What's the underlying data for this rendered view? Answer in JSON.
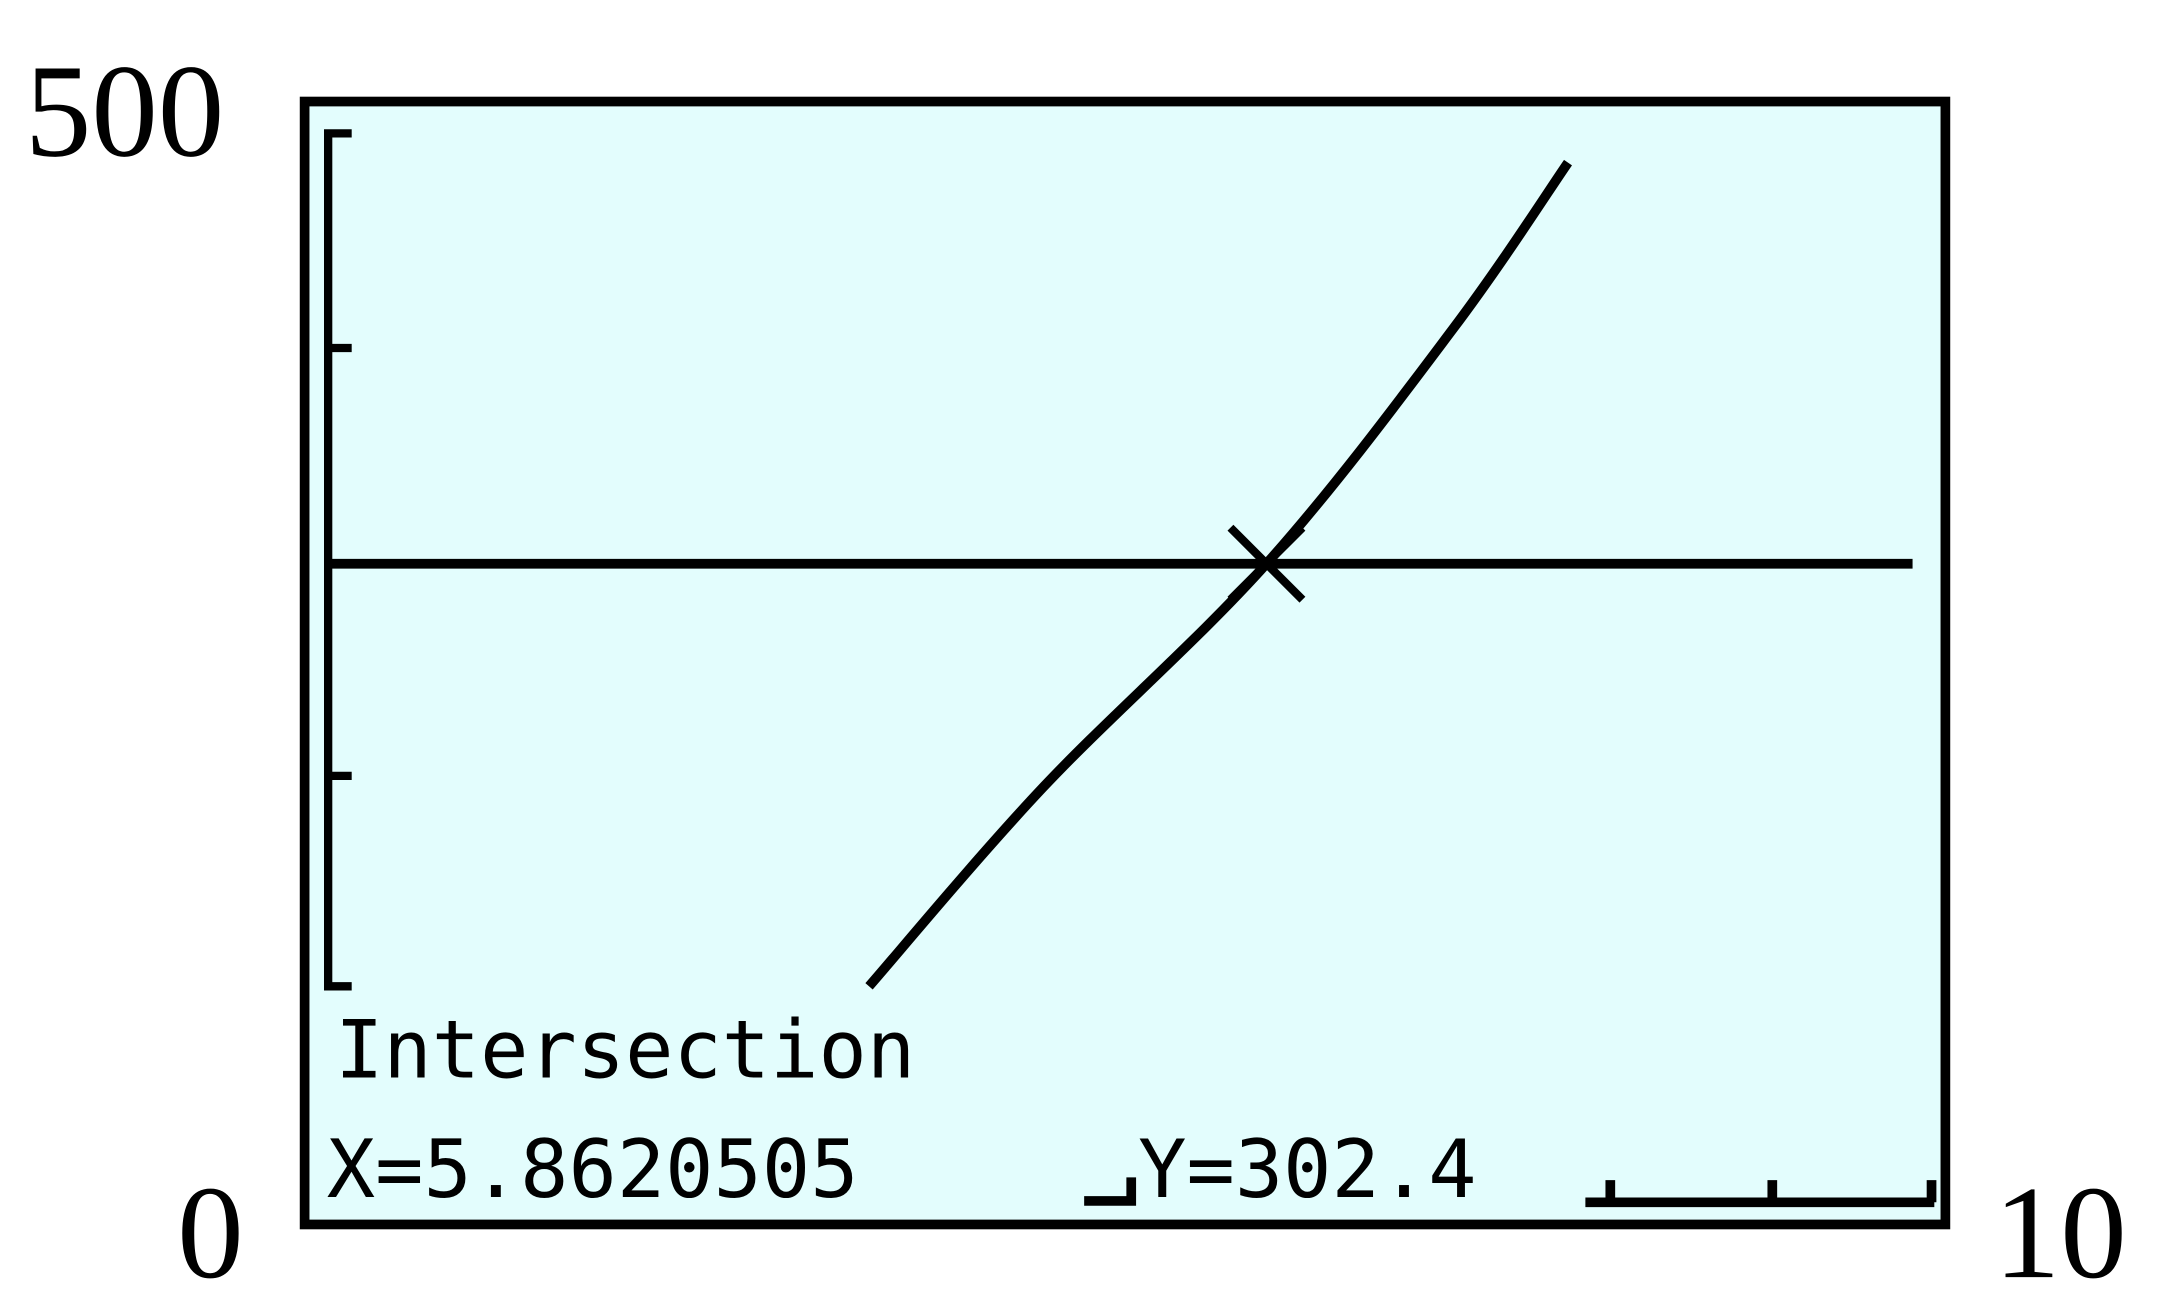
{
  "chart_data": {
    "type": "line",
    "title": "",
    "xlabel": "",
    "ylabel": "",
    "xlim": [
      0,
      10
    ],
    "ylim": [
      0,
      500
    ],
    "tick_labels": {
      "y_max": "500",
      "origin": "0",
      "x_max": "10"
    },
    "series": [
      {
        "x": [
          3.44,
          4.5,
          5.862,
          7.0,
          7.7
        ],
        "y": [
          109,
          200,
          302.4,
          410,
          486
        ]
      },
      {
        "x": [
          0.15,
          9.8
        ],
        "y": [
          302.4,
          302.4
        ]
      }
    ],
    "intersection": {
      "x": 5.8620505,
      "y": 302.4
    },
    "grid": false,
    "screen_text": {
      "label": "Intersection",
      "x_readout": "X=5.8620505",
      "y_readout": "Y=302.4"
    },
    "colors": {
      "screen_background": "#e3fdfd",
      "ink": "#000000"
    }
  }
}
